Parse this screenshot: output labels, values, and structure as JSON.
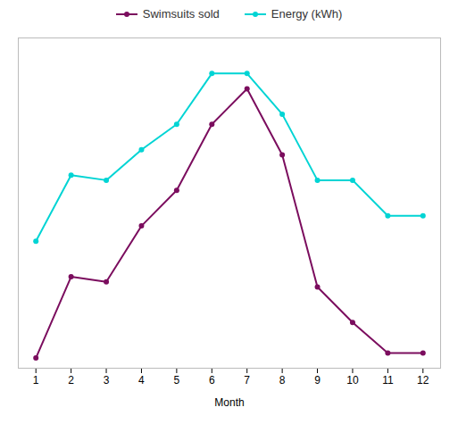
{
  "chart_data": {
    "type": "line",
    "xlabel": "Month",
    "x": [
      1,
      2,
      3,
      4,
      5,
      6,
      7,
      8,
      9,
      10,
      11,
      12
    ],
    "series": [
      {
        "name": "Swimsuits sold",
        "color": "#7b0d5e",
        "values": [
          2,
          18,
          17,
          28,
          35,
          48,
          55,
          42,
          16,
          9,
          3,
          3
        ]
      },
      {
        "name": "Energy (kWh)",
        "color": "#00d4d4",
        "values": [
          25,
          38,
          37,
          43,
          48,
          58,
          58,
          50,
          37,
          37,
          30,
          30
        ]
      }
    ],
    "xlim": [
      0.5,
      12.5
    ],
    "xticks": [
      1,
      2,
      3,
      4,
      5,
      6,
      7,
      8,
      9,
      10,
      11,
      12
    ],
    "ylim": [
      0,
      65
    ],
    "grid": false,
    "tick_labels": "x",
    "legend": "top",
    "marker": "circle"
  }
}
